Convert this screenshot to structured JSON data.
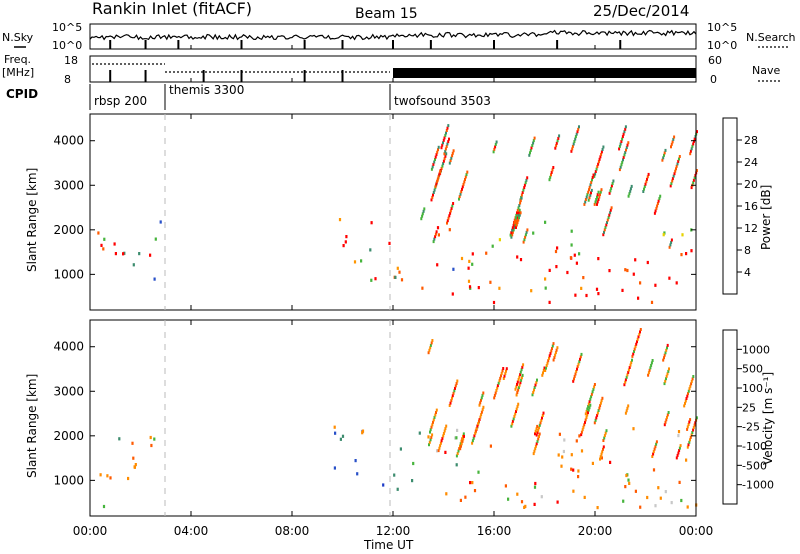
{
  "header": {
    "title": "Rankin Inlet (fitACF)",
    "beam": "Beam 15",
    "date": "25/Dec/2014"
  },
  "noise_panel": {
    "left_label": "N.Sky",
    "right_label": "N.Search",
    "left_ticks": [
      "10^5",
      "10^0"
    ],
    "right_ticks": [
      "10^5",
      "10^0"
    ]
  },
  "freq_panel": {
    "left_label_1": "Freq.",
    "left_label_2": "[MHz]",
    "right_label": "Nave",
    "left_ticks": [
      "18",
      "8"
    ],
    "right_ticks": [
      "60",
      "0"
    ]
  },
  "cpid_panel": {
    "label": "CPID",
    "programs": [
      {
        "name": "rbsp 200",
        "start_hour": 0
      },
      {
        "name": "themis 3300",
        "start_hour": 3
      },
      {
        "name": "twofsound 3503",
        "start_hour": 12
      }
    ]
  },
  "x_axis": {
    "label": "Time UT",
    "ticks": [
      "00:00",
      "04:00",
      "08:00",
      "12:00",
      "16:00",
      "20:00",
      "00:00"
    ],
    "range_hours": [
      0,
      24
    ]
  },
  "colors": {
    "power": [
      "#0000ff",
      "#2850c8",
      "#3c8c6e",
      "#46b43c",
      "#e6d200",
      "#ff9600",
      "#ff5a00",
      "#ff0000"
    ],
    "velocity": [
      "#ff0000",
      "#ff5a00",
      "#ff8c00",
      "#ffc800",
      "#c8c8c8",
      "#46b43c",
      "#3c8c6e",
      "#2850c8",
      "#1e3cc8"
    ]
  },
  "chart_data": [
    {
      "type": "heatmap",
      "panel": "power",
      "ylabel": "Slant Range [km]",
      "yticks": [
        "1000",
        "2000",
        "3000",
        "4000"
      ],
      "ylim": [
        200,
        4600
      ],
      "colorbar_label": "Power [dB]",
      "colorbar_ticks": [
        "4",
        "8",
        "12",
        "16",
        "20",
        "24",
        "28"
      ],
      "colorbar_range": [
        0,
        32
      ],
      "regions": [
        {
          "t": [
            0.0,
            2.5
          ],
          "r": [
            1000,
            2200
          ],
          "level": "mixed_high"
        },
        {
          "t": [
            2.0,
            3.0
          ],
          "r": [
            1700,
            2300
          ],
          "level": "low"
        },
        {
          "t": [
            9.5,
            12.0
          ],
          "r": [
            900,
            2300
          ],
          "level": "mixed_high"
        },
        {
          "t": [
            12.0,
            24.0
          ],
          "r": [
            400,
            2200
          ],
          "level": "high"
        },
        {
          "t": [
            14.0,
            24.0
          ],
          "r": [
            2200,
            4400
          ],
          "level": "streaks"
        }
      ]
    },
    {
      "type": "heatmap",
      "panel": "velocity",
      "ylabel": "Slant Range [km]",
      "yticks": [
        "1000",
        "2000",
        "3000",
        "4000"
      ],
      "ylim": [
        200,
        4600
      ],
      "colorbar_label": "Velocity [m s⁻¹]",
      "colorbar_ticks": [
        "1000",
        "500",
        "100",
        "25",
        "-25",
        "-100",
        "-500",
        "-1000"
      ],
      "regions": [
        {
          "t": [
            0.0,
            2.5
          ],
          "r": [
            1000,
            2200
          ],
          "level": "negative"
        },
        {
          "t": [
            9.5,
            12.5
          ],
          "r": [
            900,
            2300
          ],
          "level": "positive"
        },
        {
          "t": [
            12.0,
            24.0
          ],
          "r": [
            400,
            2200
          ],
          "level": "negative"
        },
        {
          "t": [
            14.0,
            24.0
          ],
          "r": [
            2200,
            4400
          ],
          "level": "streaks"
        }
      ]
    }
  ]
}
